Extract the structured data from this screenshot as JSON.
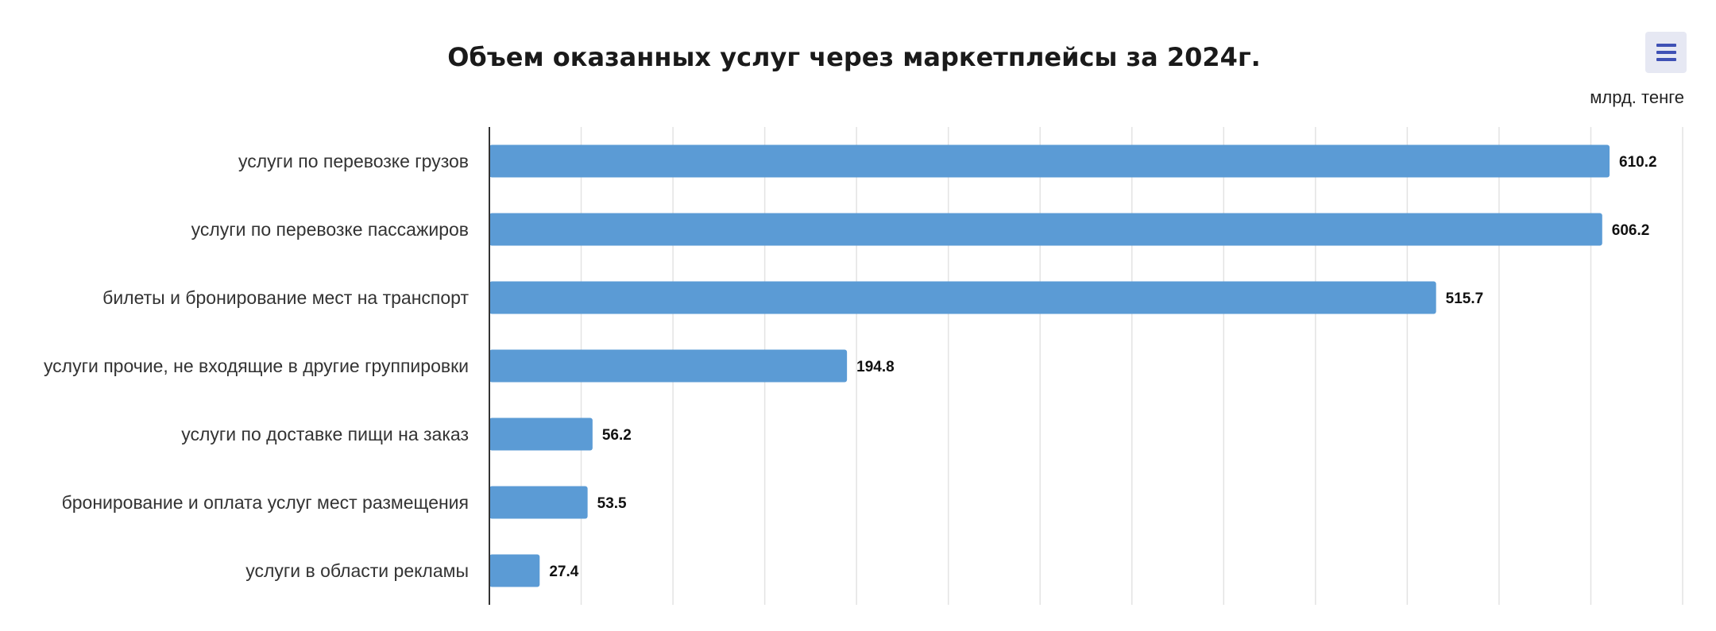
{
  "chart_data": {
    "type": "bar",
    "orientation": "horizontal",
    "title": "Объем оказанных услуг через маркетплейсы за 2024г.",
    "unit": "млрд. тенге",
    "categories": [
      "услуги по перевозке грузов",
      "услуги по перевозке пассажиров",
      "билеты и бронирование мест на транспорт",
      "услуги прочие, не входящие в другие группировки",
      "услуги по доставке пищи на заказ",
      "бронирование и оплата услуг мест размещения",
      "услуги в области рекламы"
    ],
    "values": [
      610.2,
      606.2,
      515.7,
      194.8,
      56.2,
      53.5,
      27.4
    ],
    "data_labels": [
      "610.2",
      "606.2",
      "515.7",
      "194.8",
      "56.2",
      "53.5",
      "27.4"
    ],
    "xlim": [
      0,
      650
    ],
    "grid_step": 50,
    "grid": true,
    "bar_color": "#5b9bd5",
    "legend": "none"
  },
  "menu": {
    "icon": "hamburger-menu-icon",
    "color": "#3f51b5",
    "background": "#e6e8f3"
  }
}
